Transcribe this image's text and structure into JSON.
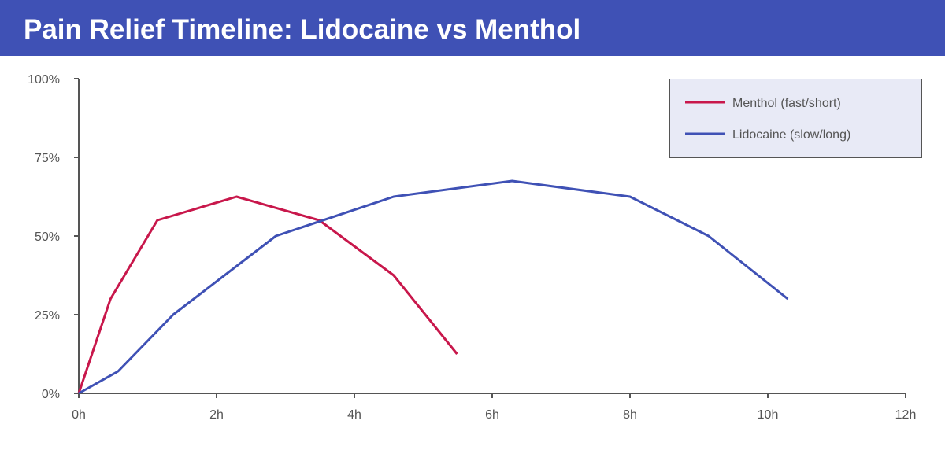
{
  "title": "Pain Relief Timeline: Lidocaine vs Menthol",
  "colors": {
    "header_bg": "#3f51b5",
    "axis": "#555555",
    "legend_bg": "#e8eaf6",
    "legend_border": "#555555"
  },
  "chart_data": {
    "type": "line",
    "title": "Pain Relief Timeline: Lidocaine vs Menthol",
    "xlabel": "",
    "ylabel": "",
    "xlim": [
      0,
      12
    ],
    "ylim": [
      0,
      100
    ],
    "x_ticks": [
      0,
      2,
      4,
      6,
      8,
      10,
      12
    ],
    "x_tick_labels": [
      "0h",
      "2h",
      "4h",
      "6h",
      "8h",
      "10h",
      "12h"
    ],
    "y_ticks": [
      0,
      25,
      50,
      75,
      100
    ],
    "y_tick_labels": [
      "0%",
      "25%",
      "50%",
      "75%",
      "100%"
    ],
    "grid": false,
    "legend_position": "top-right",
    "series": [
      {
        "name": "Menthol (fast/short)",
        "color": "#c8174b",
        "points": [
          [
            0,
            0
          ],
          [
            0.46,
            30
          ],
          [
            1.14,
            55
          ],
          [
            2.29,
            62.5
          ],
          [
            3.49,
            55
          ],
          [
            4.57,
            37.5
          ],
          [
            5.49,
            12.5
          ]
        ]
      },
      {
        "name": "Lidocaine (slow/long)",
        "color": "#3f51b5",
        "points": [
          [
            0,
            0
          ],
          [
            0.57,
            7
          ],
          [
            1.37,
            25
          ],
          [
            2.86,
            50
          ],
          [
            4.57,
            62.5
          ],
          [
            6.29,
            67.5
          ],
          [
            8,
            62.5
          ],
          [
            9.14,
            50
          ],
          [
            10.29,
            30
          ]
        ]
      }
    ]
  }
}
